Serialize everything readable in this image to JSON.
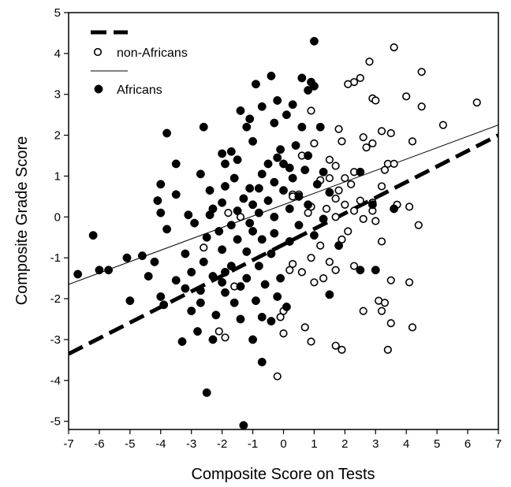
{
  "chart_data": {
    "type": "scatter",
    "title": "",
    "xlabel": "Composite Score on Tests",
    "ylabel": "Composite Grade Score",
    "xlim": [
      -7,
      7
    ],
    "ylim": [
      -5.2,
      5
    ],
    "xticks": [
      -7,
      -6,
      -5,
      -4,
      -3,
      -2,
      -1,
      0,
      1,
      2,
      3,
      4,
      5,
      6,
      7
    ],
    "yticks": [
      -5,
      -4,
      -3,
      -2,
      -1,
      0,
      1,
      2,
      3,
      4,
      5
    ],
    "grid": false,
    "legend_position": "top-left",
    "legend": [
      {
        "label": "",
        "mark": "thick-dashed-line"
      },
      {
        "label": "non-Africans",
        "mark": "open-circle"
      },
      {
        "label": "",
        "mark": "thin-solid-line"
      },
      {
        "label": "Africans",
        "mark": "filled-circle"
      }
    ],
    "series": [
      {
        "name": "non-Africans",
        "marker": "open-circle",
        "points": [
          [
            3.6,
            4.15
          ],
          [
            4.5,
            3.55
          ],
          [
            6.3,
            2.8
          ],
          [
            2.8,
            3.8
          ],
          [
            2.5,
            3.4
          ],
          [
            2.3,
            3.3
          ],
          [
            2.1,
            3.25
          ],
          [
            4.0,
            2.95
          ],
          [
            2.9,
            2.9
          ],
          [
            3.0,
            2.85
          ],
          [
            4.5,
            2.7
          ],
          [
            0.9,
            2.6
          ],
          [
            5.2,
            2.25
          ],
          [
            1.8,
            2.15
          ],
          [
            3.2,
            2.1
          ],
          [
            3.5,
            2.05
          ],
          [
            2.6,
            1.95
          ],
          [
            1.9,
            1.85
          ],
          [
            2.9,
            1.8
          ],
          [
            4.2,
            1.85
          ],
          [
            2.7,
            1.7
          ],
          [
            1.0,
            1.8
          ],
          [
            0.6,
            1.5
          ],
          [
            1.5,
            1.4
          ],
          [
            1.7,
            1.25
          ],
          [
            3.4,
            1.3
          ],
          [
            3.6,
            1.3
          ],
          [
            3.3,
            1.15
          ],
          [
            2.3,
            1.1
          ],
          [
            2.0,
            0.95
          ],
          [
            1.5,
            0.95
          ],
          [
            3.2,
            0.75
          ],
          [
            2.2,
            0.8
          ],
          [
            1.8,
            0.65
          ],
          [
            0.5,
            0.55
          ],
          [
            0.3,
            0.55
          ],
          [
            1.7,
            0.45
          ],
          [
            2.5,
            0.4
          ],
          [
            2.9,
            0.35
          ],
          [
            2.0,
            0.3
          ],
          [
            3.7,
            0.3
          ],
          [
            4.1,
            0.25
          ],
          [
            0.9,
            0.25
          ],
          [
            1.4,
            0.2
          ],
          [
            2.3,
            0.15
          ],
          [
            2.9,
            0.15
          ],
          [
            0.8,
            0.1
          ],
          [
            1.7,
            0.0
          ],
          [
            2.6,
            -0.05
          ],
          [
            3.0,
            -0.1
          ],
          [
            4.4,
            -0.2
          ],
          [
            -1.8,
            0.1
          ],
          [
            2.1,
            -0.35
          ],
          [
            1.9,
            -0.55
          ],
          [
            3.2,
            -0.6
          ],
          [
            1.2,
            -0.7
          ],
          [
            0.9,
            -1.0
          ],
          [
            1.5,
            -1.1
          ],
          [
            2.3,
            -1.2
          ],
          [
            1.7,
            -1.3
          ],
          [
            0.6,
            -1.35
          ],
          [
            0.2,
            -1.3
          ],
          [
            1.3,
            -1.5
          ],
          [
            0.3,
            -1.15
          ],
          [
            1.0,
            -1.6
          ],
          [
            4.1,
            -1.6
          ],
          [
            3.5,
            -1.55
          ],
          [
            3.1,
            -2.05
          ],
          [
            3.3,
            -2.1
          ],
          [
            3.2,
            -2.3
          ],
          [
            2.6,
            -2.3
          ],
          [
            3.5,
            -2.6
          ],
          [
            4.2,
            -2.7
          ],
          [
            0.7,
            -2.7
          ],
          [
            -0.1,
            -2.45
          ],
          [
            0.0,
            -2.3
          ],
          [
            -2.1,
            -2.8
          ],
          [
            -1.9,
            -2.95
          ],
          [
            0.0,
            -2.85
          ],
          [
            0.9,
            -3.05
          ],
          [
            1.7,
            -3.15
          ],
          [
            1.9,
            -3.25
          ],
          [
            3.4,
            -3.25
          ],
          [
            -0.2,
            -3.9
          ],
          [
            -1.6,
            -1.7
          ],
          [
            -2.6,
            -0.75
          ],
          [
            -1.4,
            0.0
          ],
          [
            0.3,
            0.5
          ],
          [
            1.2,
            0.9
          ]
        ]
      },
      {
        "name": "Africans",
        "marker": "filled-circle",
        "points": [
          [
            1.0,
            4.3
          ],
          [
            -0.4,
            3.45
          ],
          [
            0.6,
            3.4
          ],
          [
            0.9,
            3.3
          ],
          [
            0.8,
            3.1
          ],
          [
            1.0,
            3.2
          ],
          [
            -0.9,
            3.25
          ],
          [
            -0.2,
            2.85
          ],
          [
            0.3,
            2.75
          ],
          [
            -0.7,
            2.7
          ],
          [
            -1.4,
            2.6
          ],
          [
            0.1,
            2.5
          ],
          [
            -1.1,
            2.4
          ],
          [
            -0.3,
            2.3
          ],
          [
            -1.2,
            2.2
          ],
          [
            -2.6,
            2.2
          ],
          [
            0.6,
            2.2
          ],
          [
            1.2,
            2.2
          ],
          [
            -3.8,
            2.05
          ],
          [
            -1.0,
            1.85
          ],
          [
            0.4,
            1.75
          ],
          [
            -0.1,
            1.65
          ],
          [
            -1.7,
            1.6
          ],
          [
            -2.0,
            1.55
          ],
          [
            0.8,
            1.5
          ],
          [
            -0.2,
            1.45
          ],
          [
            -1.5,
            1.4
          ],
          [
            0.0,
            1.3
          ],
          [
            -3.5,
            1.3
          ],
          [
            -1.9,
            1.3
          ],
          [
            -0.5,
            1.3
          ],
          [
            0.2,
            1.2
          ],
          [
            0.7,
            1.15
          ],
          [
            1.3,
            1.1
          ],
          [
            -2.7,
            1.05
          ],
          [
            -0.7,
            1.05
          ],
          [
            2.5,
            1.1
          ],
          [
            0.3,
            0.95
          ],
          [
            -1.6,
            0.95
          ],
          [
            -0.3,
            0.85
          ],
          [
            1.1,
            0.8
          ],
          [
            -4.0,
            0.8
          ],
          [
            -1.9,
            0.75
          ],
          [
            -1.1,
            0.7
          ],
          [
            -0.8,
            0.7
          ],
          [
            0.0,
            0.65
          ],
          [
            1.5,
            0.6
          ],
          [
            -2.4,
            0.65
          ],
          [
            -3.5,
            0.55
          ],
          [
            0.5,
            0.5
          ],
          [
            -1.3,
            0.45
          ],
          [
            -0.5,
            0.4
          ],
          [
            -4.1,
            0.4
          ],
          [
            -2.0,
            0.35
          ],
          [
            -1.0,
            0.3
          ],
          [
            0.2,
            0.2
          ],
          [
            0.8,
            0.3
          ],
          [
            2.9,
            0.3
          ],
          [
            -2.3,
            0.2
          ],
          [
            -1.5,
            0.15
          ],
          [
            -0.8,
            0.1
          ],
          [
            -4.0,
            0.1
          ],
          [
            -3.1,
            0.05
          ],
          [
            -2.4,
            0.05
          ],
          [
            -0.3,
            0.0
          ],
          [
            1.3,
            -0.05
          ],
          [
            -2.9,
            -0.15
          ],
          [
            -1.7,
            -0.2
          ],
          [
            -1.1,
            -0.15
          ],
          [
            0.5,
            -0.2
          ],
          [
            -3.8,
            -0.3
          ],
          [
            -2.1,
            -0.35
          ],
          [
            -1.0,
            -0.35
          ],
          [
            -0.3,
            -0.4
          ],
          [
            1.0,
            -0.45
          ],
          [
            3.6,
            0.2
          ],
          [
            -6.2,
            -0.45
          ],
          [
            -2.5,
            -0.5
          ],
          [
            -1.5,
            -0.55
          ],
          [
            -0.7,
            -0.55
          ],
          [
            0.2,
            -0.6
          ],
          [
            1.8,
            -0.7
          ],
          [
            -2.0,
            -0.8
          ],
          [
            -1.2,
            -0.85
          ],
          [
            -0.4,
            -0.9
          ],
          [
            -3.2,
            -0.9
          ],
          [
            -4.6,
            -0.95
          ],
          [
            -5.1,
            -1.0
          ],
          [
            -4.2,
            -1.1
          ],
          [
            -2.6,
            -1.1
          ],
          [
            -1.7,
            -1.2
          ],
          [
            -0.8,
            -1.2
          ],
          [
            2.5,
            -1.3
          ],
          [
            3.0,
            -1.3
          ],
          [
            -1.9,
            -1.35
          ],
          [
            -3.0,
            -1.35
          ],
          [
            -5.7,
            -1.3
          ],
          [
            -6.0,
            -1.3
          ],
          [
            -6.7,
            -1.4
          ],
          [
            -2.3,
            -1.45
          ],
          [
            -1.2,
            -1.5
          ],
          [
            -0.1,
            -1.5
          ],
          [
            -4.4,
            -1.45
          ],
          [
            -3.5,
            -1.55
          ],
          [
            -2.0,
            -1.6
          ],
          [
            -0.6,
            -1.65
          ],
          [
            -1.4,
            -1.7
          ],
          [
            -3.2,
            -1.75
          ],
          [
            -2.7,
            -1.8
          ],
          [
            -1.9,
            -1.85
          ],
          [
            1.5,
            -1.9
          ],
          [
            -0.2,
            -1.95
          ],
          [
            -4.0,
            -1.95
          ],
          [
            -3.9,
            -2.15
          ],
          [
            -2.7,
            -2.1
          ],
          [
            -5.0,
            -2.05
          ],
          [
            -1.6,
            -2.1
          ],
          [
            -0.9,
            -2.05
          ],
          [
            0.1,
            -2.2
          ],
          [
            -3.0,
            -2.3
          ],
          [
            -2.2,
            -2.4
          ],
          [
            -0.7,
            -2.45
          ],
          [
            -1.4,
            -2.5
          ],
          [
            -0.4,
            -2.55
          ],
          [
            -2.8,
            -2.8
          ],
          [
            -3.3,
            -3.05
          ],
          [
            -2.3,
            -3.0
          ],
          [
            -1.0,
            -3.0
          ],
          [
            -0.7,
            -3.55
          ],
          [
            -2.5,
            -4.3
          ],
          [
            -1.3,
            -5.1
          ]
        ]
      }
    ],
    "fit_lines": [
      {
        "group": "Africans",
        "style": "thin-solid",
        "from": [
          -7,
          -1.65
        ],
        "to": [
          7,
          2.25
        ]
      },
      {
        "group": "non-Africans",
        "style": "thick-dashed",
        "from": [
          -7,
          -3.35
        ],
        "to": [
          7,
          2.0
        ]
      }
    ]
  }
}
